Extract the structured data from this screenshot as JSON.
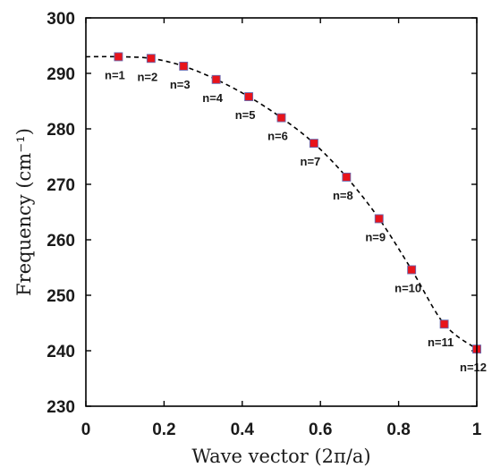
{
  "chart_data": {
    "type": "scatter",
    "xlabel": "Wave vector (2π/a)",
    "ylabel": "Frequency (cm⁻¹)",
    "xlim": [
      0,
      1
    ],
    "ylim": [
      230,
      300
    ],
    "xticks": [
      "0",
      "0.2",
      "0.4",
      "0.6",
      "0.8",
      "1"
    ],
    "xtick_values": [
      0,
      0.2,
      0.4,
      0.6,
      0.8,
      1
    ],
    "yticks": [
      "230",
      "240",
      "250",
      "260",
      "270",
      "280",
      "290",
      "300"
    ],
    "ytick_values": [
      230,
      240,
      250,
      260,
      270,
      280,
      290,
      300
    ],
    "grid": false,
    "legend": "none",
    "series": [
      {
        "style": "markers",
        "color": "#e8141b",
        "edge_color": "#6a6ab0",
        "points": [
          {
            "x": 0.0833,
            "y": 293.0,
            "label": "n=1"
          },
          {
            "x": 0.1667,
            "y": 292.7,
            "label": "n=2"
          },
          {
            "x": 0.25,
            "y": 291.3,
            "label": "n=3"
          },
          {
            "x": 0.3333,
            "y": 288.9,
            "label": "n=4"
          },
          {
            "x": 0.4167,
            "y": 285.8,
            "label": "n=5"
          },
          {
            "x": 0.5,
            "y": 282.0,
            "label": "n=6"
          },
          {
            "x": 0.5833,
            "y": 277.4,
            "label": "n=7"
          },
          {
            "x": 0.6667,
            "y": 271.3,
            "label": "n=8"
          },
          {
            "x": 0.75,
            "y": 263.8,
            "label": "n=9"
          },
          {
            "x": 0.8333,
            "y": 254.6,
            "label": "n=10"
          },
          {
            "x": 0.9167,
            "y": 244.8,
            "label": "n=11"
          },
          {
            "x": 1.0,
            "y": 240.3,
            "label": "n=12"
          }
        ]
      },
      {
        "style": "dashed",
        "color": "#000000",
        "x": [
          0,
          0.0833,
          0.1667,
          0.25,
          0.3333,
          0.4167,
          0.5,
          0.5833,
          0.6667,
          0.75,
          0.8333,
          0.9167,
          1.0
        ],
        "y": [
          293.0,
          293.0,
          292.7,
          291.3,
          288.9,
          285.8,
          282.0,
          277.4,
          271.3,
          263.8,
          254.6,
          244.8,
          240.3
        ]
      }
    ]
  }
}
